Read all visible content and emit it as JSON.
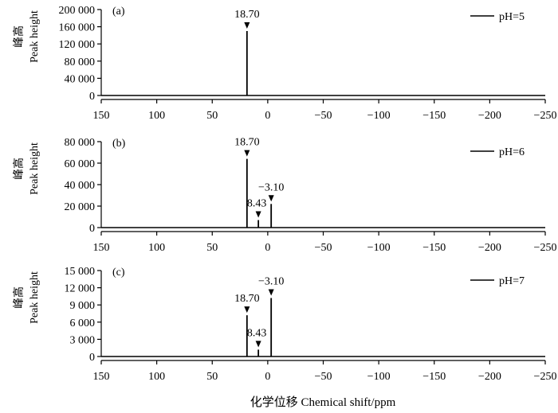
{
  "chart_data": {
    "type": "line",
    "xlabel": "化学位移 Chemical shift/ppm",
    "x_ticks": [
      150,
      100,
      50,
      0,
      -50,
      -100,
      -150,
      -200,
      -250
    ],
    "x_tick_labels": [
      "150",
      "100",
      "50",
      "0",
      "−50",
      "−100",
      "−150",
      "−200",
      "−250"
    ],
    "xlim": [
      150,
      -250
    ],
    "panels": [
      {
        "letter": "(a)",
        "legend": "pH=5",
        "ylabel_cn": "峰高",
        "ylabel_en": "Peak height",
        "ylim": [
          0,
          200000
        ],
        "y_ticks": [
          0,
          40000,
          80000,
          120000,
          160000,
          200000
        ],
        "y_tick_labels": [
          "0",
          "40 000",
          "80 000",
          "120 000",
          "160 000",
          "200 000"
        ],
        "peaks": [
          {
            "x": 18.7,
            "y": 150000,
            "label": "18.70"
          }
        ]
      },
      {
        "letter": "(b)",
        "legend": "pH=6",
        "ylabel_cn": "峰高",
        "ylabel_en": "Peak height",
        "ylim": [
          0,
          80000
        ],
        "y_ticks": [
          0,
          20000,
          40000,
          60000,
          80000
        ],
        "y_tick_labels": [
          "0",
          "20 000",
          "40 000",
          "60 000",
          "80 000"
        ],
        "peaks": [
          {
            "x": 18.7,
            "y": 64000,
            "label": "18.70"
          },
          {
            "x": 8.43,
            "y": 7000,
            "label": "8.43"
          },
          {
            "x": -3.1,
            "y": 22000,
            "label": "−3.10"
          }
        ]
      },
      {
        "letter": "(c)",
        "legend": "pH=7",
        "ylabel_cn": "峰高",
        "ylabel_en": "Peak height",
        "ylim": [
          0,
          15000
        ],
        "y_ticks": [
          0,
          3000,
          6000,
          9000,
          12000,
          15000
        ],
        "y_tick_labels": [
          "0",
          "3 000",
          "6 000",
          "9 000",
          "12 000",
          "15 000"
        ],
        "peaks": [
          {
            "x": 18.7,
            "y": 7200,
            "label": "18.70"
          },
          {
            "x": 8.43,
            "y": 1200,
            "label": "8.43"
          },
          {
            "x": -3.1,
            "y": 10200,
            "label": "−3.10"
          }
        ]
      }
    ]
  }
}
